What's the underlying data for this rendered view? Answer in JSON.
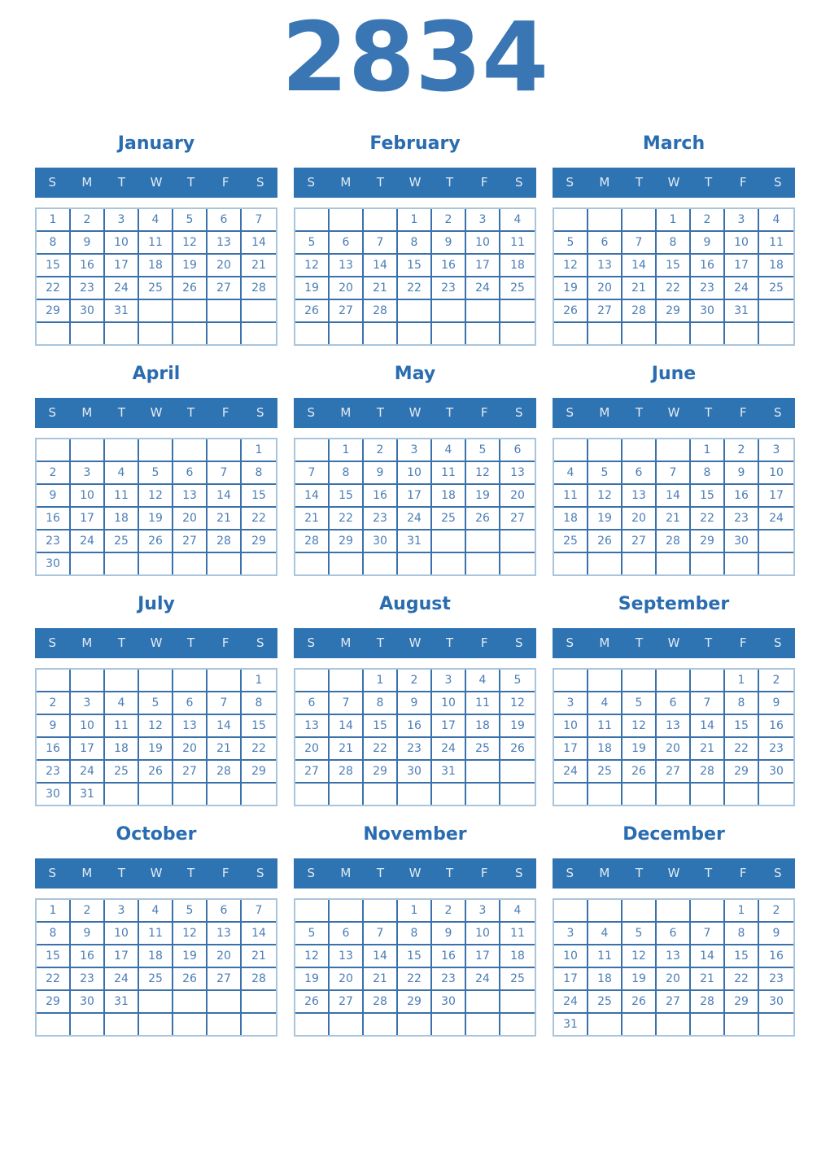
{
  "title": "2834",
  "day_headers": [
    "S",
    "M",
    "T",
    "W",
    "T",
    "F",
    "S"
  ],
  "colors": {
    "title": "#3b76b4",
    "month_title": "#2a6cb0",
    "weekday_header_bg": "#2e73b2",
    "weekday_header_text": "#e2ebf4",
    "day_text": "#4b7db6",
    "grid_border_inner": "#3a71ab",
    "grid_border_outer": "#a9c5dd",
    "page_bg": "#ffffff"
  },
  "months": [
    {
      "name": "January",
      "weeks": [
        [
          "1",
          "2",
          "3",
          "4",
          "5",
          "6",
          "7"
        ],
        [
          "8",
          "9",
          "10",
          "11",
          "12",
          "13",
          "14"
        ],
        [
          "15",
          "16",
          "17",
          "18",
          "19",
          "20",
          "21"
        ],
        [
          "22",
          "23",
          "24",
          "25",
          "26",
          "27",
          "28"
        ],
        [
          "29",
          "30",
          "31",
          "",
          "",
          "",
          ""
        ],
        [
          "",
          "",
          "",
          "",
          "",
          "",
          ""
        ]
      ]
    },
    {
      "name": "February",
      "weeks": [
        [
          "",
          "",
          "",
          "1",
          "2",
          "3",
          "4"
        ],
        [
          "5",
          "6",
          "7",
          "8",
          "9",
          "10",
          "11"
        ],
        [
          "12",
          "13",
          "14",
          "15",
          "16",
          "17",
          "18"
        ],
        [
          "19",
          "20",
          "21",
          "22",
          "23",
          "24",
          "25"
        ],
        [
          "26",
          "27",
          "28",
          "",
          "",
          "",
          ""
        ],
        [
          "",
          "",
          "",
          "",
          "",
          "",
          ""
        ]
      ]
    },
    {
      "name": "March",
      "weeks": [
        [
          "",
          "",
          "",
          "1",
          "2",
          "3",
          "4"
        ],
        [
          "5",
          "6",
          "7",
          "8",
          "9",
          "10",
          "11"
        ],
        [
          "12",
          "13",
          "14",
          "15",
          "16",
          "17",
          "18"
        ],
        [
          "19",
          "20",
          "21",
          "22",
          "23",
          "24",
          "25"
        ],
        [
          "26",
          "27",
          "28",
          "29",
          "30",
          "31",
          ""
        ],
        [
          "",
          "",
          "",
          "",
          "",
          "",
          ""
        ]
      ]
    },
    {
      "name": "April",
      "weeks": [
        [
          "",
          "",
          "",
          "",
          "",
          "",
          "1"
        ],
        [
          "2",
          "3",
          "4",
          "5",
          "6",
          "7",
          "8"
        ],
        [
          "9",
          "10",
          "11",
          "12",
          "13",
          "14",
          "15"
        ],
        [
          "16",
          "17",
          "18",
          "19",
          "20",
          "21",
          "22"
        ],
        [
          "23",
          "24",
          "25",
          "26",
          "27",
          "28",
          "29"
        ],
        [
          "30",
          "",
          "",
          "",
          "",
          "",
          ""
        ]
      ]
    },
    {
      "name": "May",
      "weeks": [
        [
          "",
          "1",
          "2",
          "3",
          "4",
          "5",
          "6"
        ],
        [
          "7",
          "8",
          "9",
          "10",
          "11",
          "12",
          "13"
        ],
        [
          "14",
          "15",
          "16",
          "17",
          "18",
          "19",
          "20"
        ],
        [
          "21",
          "22",
          "23",
          "24",
          "25",
          "26",
          "27"
        ],
        [
          "28",
          "29",
          "30",
          "31",
          "",
          "",
          ""
        ],
        [
          "",
          "",
          "",
          "",
          "",
          "",
          ""
        ]
      ]
    },
    {
      "name": "June",
      "weeks": [
        [
          "",
          "",
          "",
          "",
          "1",
          "2",
          "3"
        ],
        [
          "4",
          "5",
          "6",
          "7",
          "8",
          "9",
          "10"
        ],
        [
          "11",
          "12",
          "13",
          "14",
          "15",
          "16",
          "17"
        ],
        [
          "18",
          "19",
          "20",
          "21",
          "22",
          "23",
          "24"
        ],
        [
          "25",
          "26",
          "27",
          "28",
          "29",
          "30",
          ""
        ],
        [
          "",
          "",
          "",
          "",
          "",
          "",
          ""
        ]
      ]
    },
    {
      "name": "July",
      "weeks": [
        [
          "",
          "",
          "",
          "",
          "",
          "",
          "1"
        ],
        [
          "2",
          "3",
          "4",
          "5",
          "6",
          "7",
          "8"
        ],
        [
          "9",
          "10",
          "11",
          "12",
          "13",
          "14",
          "15"
        ],
        [
          "16",
          "17",
          "18",
          "19",
          "20",
          "21",
          "22"
        ],
        [
          "23",
          "24",
          "25",
          "26",
          "27",
          "28",
          "29"
        ],
        [
          "30",
          "31",
          "",
          "",
          "",
          "",
          ""
        ]
      ]
    },
    {
      "name": "August",
      "weeks": [
        [
          "",
          "",
          "1",
          "2",
          "3",
          "4",
          "5"
        ],
        [
          "6",
          "7",
          "8",
          "9",
          "10",
          "11",
          "12"
        ],
        [
          "13",
          "14",
          "15",
          "16",
          "17",
          "18",
          "19"
        ],
        [
          "20",
          "21",
          "22",
          "23",
          "24",
          "25",
          "26"
        ],
        [
          "27",
          "28",
          "29",
          "30",
          "31",
          "",
          ""
        ],
        [
          "",
          "",
          "",
          "",
          "",
          "",
          ""
        ]
      ]
    },
    {
      "name": "September",
      "weeks": [
        [
          "",
          "",
          "",
          "",
          "",
          "1",
          "2"
        ],
        [
          "3",
          "4",
          "5",
          "6",
          "7",
          "8",
          "9"
        ],
        [
          "10",
          "11",
          "12",
          "13",
          "14",
          "15",
          "16"
        ],
        [
          "17",
          "18",
          "19",
          "20",
          "21",
          "22",
          "23"
        ],
        [
          "24",
          "25",
          "26",
          "27",
          "28",
          "29",
          "30"
        ],
        [
          "",
          "",
          "",
          "",
          "",
          "",
          ""
        ]
      ]
    },
    {
      "name": "October",
      "weeks": [
        [
          "1",
          "2",
          "3",
          "4",
          "5",
          "6",
          "7"
        ],
        [
          "8",
          "9",
          "10",
          "11",
          "12",
          "13",
          "14"
        ],
        [
          "15",
          "16",
          "17",
          "18",
          "19",
          "20",
          "21"
        ],
        [
          "22",
          "23",
          "24",
          "25",
          "26",
          "27",
          "28"
        ],
        [
          "29",
          "30",
          "31",
          "",
          "",
          "",
          ""
        ],
        [
          "",
          "",
          "",
          "",
          "",
          "",
          ""
        ]
      ]
    },
    {
      "name": "November",
      "weeks": [
        [
          "",
          "",
          "",
          "1",
          "2",
          "3",
          "4"
        ],
        [
          "5",
          "6",
          "7",
          "8",
          "9",
          "10",
          "11"
        ],
        [
          "12",
          "13",
          "14",
          "15",
          "16",
          "17",
          "18"
        ],
        [
          "19",
          "20",
          "21",
          "22",
          "23",
          "24",
          "25"
        ],
        [
          "26",
          "27",
          "28",
          "29",
          "30",
          "",
          ""
        ],
        [
          "",
          "",
          "",
          "",
          "",
          "",
          ""
        ]
      ]
    },
    {
      "name": "December",
      "weeks": [
        [
          "",
          "",
          "",
          "",
          "",
          "1",
          "2"
        ],
        [
          "3",
          "4",
          "5",
          "6",
          "7",
          "8",
          "9"
        ],
        [
          "10",
          "11",
          "12",
          "13",
          "14",
          "15",
          "16"
        ],
        [
          "17",
          "18",
          "19",
          "20",
          "21",
          "22",
          "23"
        ],
        [
          "24",
          "25",
          "26",
          "27",
          "28",
          "29",
          "30"
        ],
        [
          "31",
          "",
          "",
          "",
          "",
          "",
          ""
        ]
      ]
    }
  ]
}
